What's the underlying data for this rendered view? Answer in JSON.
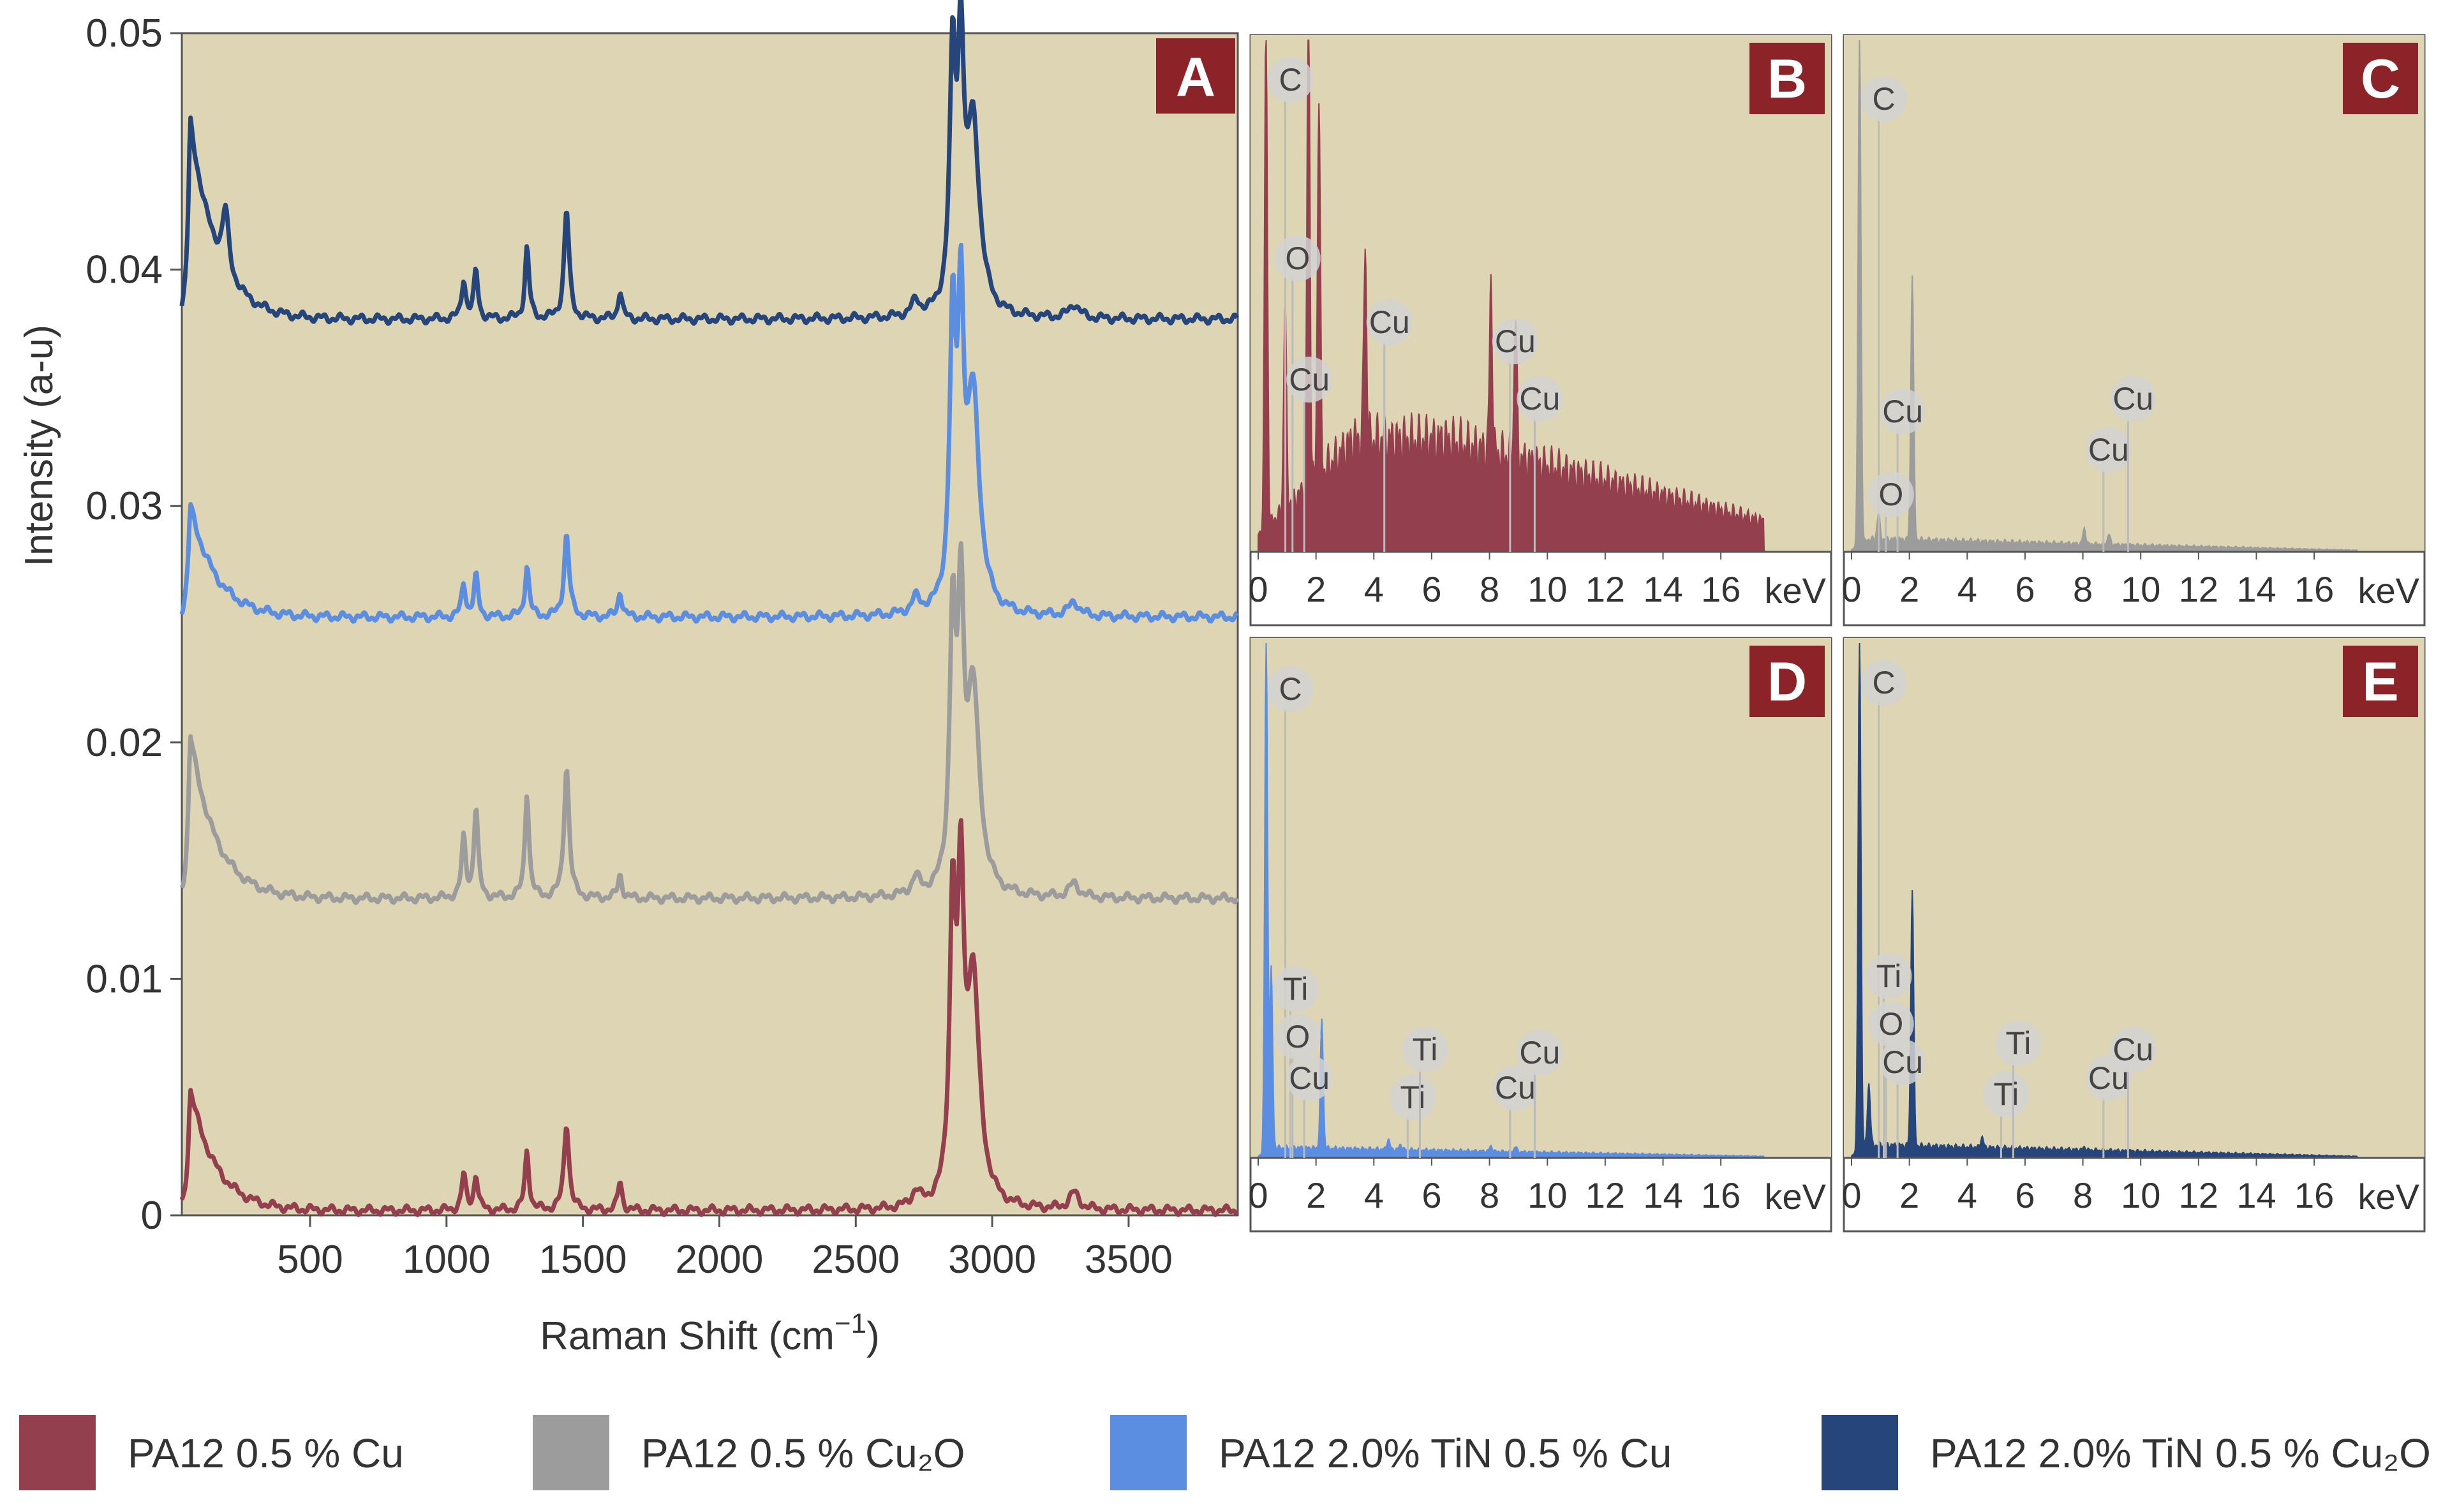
{
  "chart_data": [
    {
      "panel": "A",
      "type": "line",
      "xlabel": "Raman Shift (cm",
      "xlabel_sup": "−1",
      "xlabel_close": ")",
      "ylabel": "Intensity (a-u)",
      "xlim": [
        30,
        3900
      ],
      "ylim": [
        0,
        0.05
      ],
      "x_ticks": [
        500,
        1000,
        1500,
        2000,
        2500,
        3000,
        3500
      ],
      "x_tick_labels": [
        "500",
        "1000",
        "1500",
        "2000",
        "2500",
        "3000",
        "3500"
      ],
      "y_ticks": [
        0,
        0.01,
        0.02,
        0.03,
        0.04,
        0.05
      ],
      "y_tick_labels": [
        "0",
        "0.01",
        "0.02",
        "0.03",
        "0.04",
        "0.05"
      ],
      "peak_positions_cm": [
        60,
        190,
        1063,
        1108,
        1295,
        1440,
        1636,
        2720,
        2855,
        2885,
        2930,
        3300
      ],
      "series": [
        {
          "name": "PA12 0.5 % Cu",
          "color": "#943f4d",
          "baseline": 0.0002,
          "peak_heights": [
            0.0052,
            0.0,
            0.0015,
            0.0015,
            0.0025,
            0.0037,
            0.0012,
            0.0006,
            0.012,
            0.012,
            0.0095,
            0.0007
          ]
        },
        {
          "name": "PA12 0.5 % Cu₂O",
          "color": "#9c9c9c",
          "baseline": 0.0134,
          "peak_heights": [
            0.007,
            0.0,
            0.0025,
            0.0038,
            0.0045,
            0.0056,
            0.001,
            0.0007,
            0.011,
            0.011,
            0.0085,
            0.0006
          ]
        },
        {
          "name": "PA12 2.0% TiN 0.5 % Cu",
          "color": "#5b8de0",
          "baseline": 0.0253,
          "peak_heights": [
            0.0048,
            0.0,
            0.0014,
            0.0017,
            0.0022,
            0.0035,
            0.0011,
            0.0006,
            0.0115,
            0.0115,
            0.009,
            0.0006
          ]
        },
        {
          "name": "PA12 2.0% TiN 0.5 % Cu₂O",
          "color": "#26457a",
          "baseline": 0.0379,
          "peak_heights": [
            0.0085,
            0.0026,
            0.0017,
            0.002,
            0.003,
            0.0046,
            0.0012,
            0.0006,
            0.0102,
            0.0102,
            0.008,
            0.0006
          ]
        }
      ]
    },
    {
      "panel": "B",
      "type": "area",
      "color": "#943f4d",
      "xlabel": "keV",
      "x_tick_labels": [
        "0",
        "2",
        "4",
        "6",
        "8",
        "10",
        "12",
        "14",
        "16"
      ],
      "peaks_keV": [
        {
          "x": 0.27,
          "y": 100
        },
        {
          "x": 0.93,
          "y": 40
        },
        {
          "x": 1.74,
          "y": 100
        },
        {
          "x": 2.1,
          "y": 75
        },
        {
          "x": 3.7,
          "y": 38
        },
        {
          "x": 8.05,
          "y": 33
        },
        {
          "x": 8.9,
          "y": 28
        }
      ],
      "continuum": {
        "rise_keV": 3.3,
        "peak_keV": 6.5,
        "level": 22,
        "end_level": 6
      },
      "element_labels": [
        {
          "text": "C",
          "x": 0.277
        },
        {
          "text": "O",
          "x": 0.525
        },
        {
          "text": "Cu",
          "x": 0.93
        },
        {
          "text": "Cu",
          "x": 3.7
        },
        {
          "text": "Cu",
          "x": 8.05
        },
        {
          "text": "Cu",
          "x": 8.9
        }
      ]
    },
    {
      "panel": "C",
      "type": "area",
      "color": "#9c9c9c",
      "xlabel": "keV",
      "x_tick_labels": [
        "0",
        "2",
        "4",
        "6",
        "8",
        "10",
        "12",
        "14",
        "16"
      ],
      "peaks_keV": [
        {
          "x": 0.277,
          "y": 100
        },
        {
          "x": 0.93,
          "y": 5
        },
        {
          "x": 2.1,
          "y": 52
        },
        {
          "x": 8.05,
          "y": 3
        },
        {
          "x": 8.9,
          "y": 2
        }
      ],
      "continuum": {
        "rise_keV": 0.6,
        "peak_keV": 1.5,
        "level": 2.5,
        "end_level": 0.3
      },
      "element_labels": [
        {
          "text": "C",
          "x": 0.277
        },
        {
          "text": "Cu",
          "x": 0.93
        },
        {
          "text": "O",
          "x": 0.525
        },
        {
          "text": "Cu",
          "x": 8.05
        },
        {
          "text": "Cu",
          "x": 8.9
        }
      ]
    },
    {
      "panel": "D",
      "type": "area",
      "color": "#5b8de0",
      "xlabel": "keV",
      "x_tick_labels": [
        "0",
        "2",
        "4",
        "6",
        "8",
        "10",
        "12",
        "14",
        "16"
      ],
      "peaks_keV": [
        {
          "x": 0.277,
          "y": 100
        },
        {
          "x": 0.45,
          "y": 35
        },
        {
          "x": 2.2,
          "y": 25
        },
        {
          "x": 4.5,
          "y": 2
        },
        {
          "x": 4.93,
          "y": 1
        },
        {
          "x": 8.05,
          "y": 1
        },
        {
          "x": 8.9,
          "y": 1
        }
      ],
      "continuum": {
        "rise_keV": 0.5,
        "peak_keV": 1.5,
        "level": 2,
        "end_level": 0.3
      },
      "element_labels": [
        {
          "text": "C",
          "x": 0.277
        },
        {
          "text": "Ti",
          "x": 0.452
        },
        {
          "text": "O",
          "x": 0.525
        },
        {
          "text": "Cu",
          "x": 0.93
        },
        {
          "text": "Ti",
          "x": 4.51
        },
        {
          "text": "Ti",
          "x": 4.93
        },
        {
          "text": "Cu",
          "x": 8.05
        },
        {
          "text": "Cu",
          "x": 8.9
        }
      ]
    },
    {
      "panel": "E",
      "type": "area",
      "color": "#26457a",
      "xlabel": "keV",
      "x_tick_labels": [
        "0",
        "2",
        "4",
        "6",
        "8",
        "10",
        "12",
        "14",
        "16"
      ],
      "peaks_keV": [
        {
          "x": 0.277,
          "y": 100
        },
        {
          "x": 0.6,
          "y": 12
        },
        {
          "x": 2.1,
          "y": 50
        },
        {
          "x": 4.51,
          "y": 2
        },
        {
          "x": 8.05,
          "y": 0.5
        }
      ],
      "continuum": {
        "rise_keV": 0.5,
        "peak_keV": 1.5,
        "level": 2.5,
        "end_level": 0.3
      },
      "element_labels": [
        {
          "text": "C",
          "x": 0.277
        },
        {
          "text": "Ti",
          "x": 0.452
        },
        {
          "text": "O",
          "x": 0.525
        },
        {
          "text": "Cu",
          "x": 0.93
        },
        {
          "text": "Ti",
          "x": 4.51
        },
        {
          "text": "Ti",
          "x": 4.93
        },
        {
          "text": "Cu",
          "x": 8.05
        },
        {
          "text": "Cu",
          "x": 8.9
        }
      ]
    }
  ],
  "legend": [
    {
      "label": "PA12 0.5 % Cu",
      "color": "#943f4d"
    },
    {
      "label": "PA12 0.5 % Cu₂O",
      "color": "#9c9c9c"
    },
    {
      "label": "PA12 2.0% TiN 0.5 % Cu",
      "color": "#5b8de0"
    },
    {
      "label": "PA12 2.0% TiN 0.5 % Cu₂O",
      "color": "#26457a"
    }
  ],
  "colors": {
    "plot_background": "#ddd5b4",
    "panel_badge": "#8b2328",
    "label_bubble": "#d2d2d2"
  }
}
